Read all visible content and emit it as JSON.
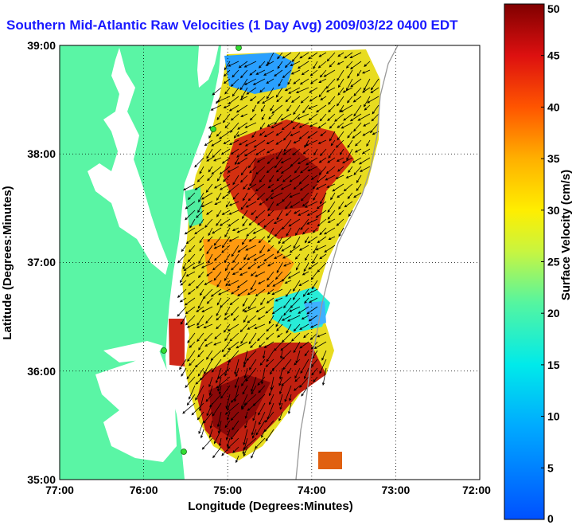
{
  "map": {
    "title": "Southern Mid-Atlantic Raw Velocities (1 Day Avg) 2009/03/22 0400 EDT",
    "xlabel": "Longitude (Degrees:Minutes)",
    "ylabel": "Latitude (Degrees:Minutes)",
    "x_ticks": [
      "77:00",
      "76:00",
      "75:00",
      "74:00",
      "73:00",
      "72:00"
    ],
    "y_ticks": [
      "39:00",
      "38:00",
      "37:00",
      "36:00",
      "35:00"
    ],
    "colorbar": {
      "label": "Surface Velocity (cm/s)",
      "ticks": [
        "0",
        "5",
        "10",
        "15",
        "20",
        "25",
        "30",
        "35",
        "40",
        "45",
        "50"
      ],
      "range": [
        0,
        50
      ]
    },
    "colors": {
      "land": "#5af5a5",
      "water": "#ffffff",
      "title": "#1a1aff",
      "station": "#33dd33"
    },
    "extent": {
      "lon": [
        -77,
        -72
      ],
      "lat": [
        35,
        39
      ]
    }
  }
}
